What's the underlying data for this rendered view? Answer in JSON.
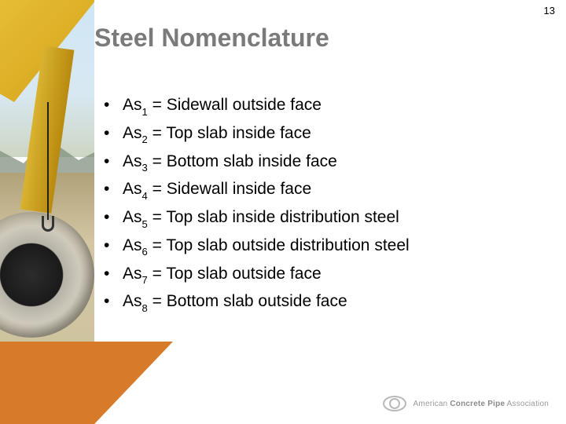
{
  "page_number": "13",
  "title": "Steel Nomenclature",
  "title_color": "#7a7a7a",
  "title_fontsize": 32,
  "bullet_fontsize": 21,
  "bullet_color": "#000000",
  "bullets": [
    {
      "symbol": "As",
      "sub": "1",
      "definition": "Sidewall outside face"
    },
    {
      "symbol": "As",
      "sub": "2",
      "definition": "Top slab inside face"
    },
    {
      "symbol": "As",
      "sub": "3",
      "definition": "Bottom slab inside face"
    },
    {
      "symbol": "As",
      "sub": "4",
      "definition": "Sidewall inside face"
    },
    {
      "symbol": "As",
      "sub": "5",
      "definition": "Top slab inside distribution steel"
    },
    {
      "symbol": "As",
      "sub": "6",
      "definition": "Top slab outside distribution steel"
    },
    {
      "symbol": "As",
      "sub": "7",
      "definition": "Top slab outside face"
    },
    {
      "symbol": "As",
      "sub": "8",
      "definition": "Bottom slab outside face"
    }
  ],
  "accent_orange": "#d77a2a",
  "background_color": "#ffffff",
  "footer": {
    "org_prefix": "American",
    "org_bold": "Concrete Pipe",
    "org_suffix": "Association"
  },
  "left_decoration": {
    "type": "photo-strip",
    "description": "construction crane lifting concrete pipe, desert/mountain backdrop",
    "colors": {
      "crane": "#d9b330",
      "sky": "#cfe6f5",
      "ground": "#cfc4a0",
      "pipe_rim": "#cfcabc",
      "pipe_inner": "#1a1a1a"
    }
  }
}
